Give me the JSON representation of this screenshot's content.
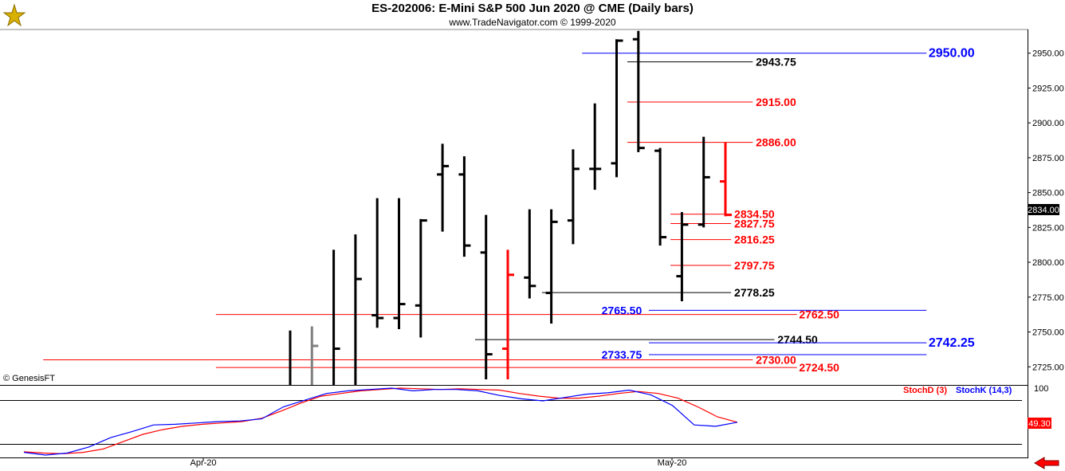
{
  "header": {
    "title": "ES-202006:  E-Mini S&P 500 Jun 2020 @ CME  (Daily bars)",
    "subtitle": "www.TradeNavigator.com © 1999-2020"
  },
  "watermark": "© GenesisFT",
  "colors": {
    "up_bar": "#000000",
    "alt_bar": "#ff0000",
    "blue": "#0000ff",
    "red": "#ff0000",
    "grey": "#808080"
  },
  "chart_data": [
    {
      "type": "bar",
      "subtype": "ohlc",
      "title": "ES-202006:  E-Mini S&P 500 Jun 2020 @ CME  (Daily bars)",
      "ylim": [
        2712,
        2967
      ],
      "yticks": [
        "2950.00",
        "2925.00",
        "2900.00",
        "2875.00",
        "2850.00",
        "2825.00",
        "2800.00",
        "2775.00",
        "2750.00",
        "2725.00"
      ],
      "xtick_labels": [
        "Apr-20",
        "May-20"
      ],
      "last_price": "2834.00",
      "bars": [
        {
          "o": null,
          "h": 2751,
          "l": 2712,
          "c": null,
          "color": "#000000"
        },
        {
          "o": null,
          "h": 2754,
          "l": 2712,
          "c": 2740,
          "color": "#808080"
        },
        {
          "o": null,
          "h": 2809,
          "l": 2712,
          "c": 2738,
          "color": "#000000"
        },
        {
          "o": null,
          "h": 2820,
          "l": 2712,
          "c": 2788,
          "color": "#000000"
        },
        {
          "o": 2762,
          "h": 2846,
          "l": 2753,
          "c": 2760,
          "color": "#000000"
        },
        {
          "o": 2760,
          "h": 2846,
          "l": 2752,
          "c": 2770,
          "color": "#000000"
        },
        {
          "o": 2769,
          "h": 2831,
          "l": 2746,
          "c": 2830,
          "color": "#000000"
        },
        {
          "o": 2863,
          "h": 2885,
          "l": 2822,
          "c": 2869,
          "color": "#000000"
        },
        {
          "o": 2863,
          "h": 2876,
          "l": 2804,
          "c": 2812,
          "color": "#000000"
        },
        {
          "o": 2807,
          "h": 2834,
          "l": 2716,
          "c": 2734,
          "color": "#000000"
        },
        {
          "o": 2738,
          "h": 2809,
          "l": 2716,
          "c": 2791,
          "color": "#ff0000"
        },
        {
          "o": 2789,
          "h": 2838,
          "l": 2774,
          "c": 2783,
          "color": "#000000"
        },
        {
          "o": 2778,
          "h": 2838,
          "l": 2756,
          "c": 2829,
          "color": "#000000"
        },
        {
          "o": 2830,
          "h": 2881,
          "l": 2813,
          "c": 2867,
          "color": "#000000"
        },
        {
          "o": 2867,
          "h": 2914,
          "l": 2852,
          "c": 2867,
          "color": "#000000"
        },
        {
          "o": 2871,
          "h": 2960,
          "l": 2861,
          "c": 2959,
          "color": "#000000"
        },
        {
          "o": 2960,
          "h": 2966,
          "l": 2879,
          "c": 2882,
          "color": "#000000"
        },
        {
          "o": 2880,
          "h": 2882,
          "l": 2812,
          "c": 2818,
          "color": "#000000"
        },
        {
          "o": 2790,
          "h": 2836,
          "l": 2772,
          "c": 2827,
          "color": "#000000"
        },
        {
          "o": 2827,
          "h": 2890,
          "l": 2825,
          "c": 2861,
          "color": "#000000"
        },
        {
          "o": 2858,
          "h": 2886,
          "l": 2833,
          "c": 2834,
          "color": "#ff0000"
        }
      ],
      "levels": [
        {
          "value": 2950.0,
          "label": "2950.00",
          "color": "#0000ff",
          "size": "big",
          "x0": 0.566,
          "x1": 0.901,
          "lx": 0.903
        },
        {
          "value": 2943.75,
          "label": "2943.75",
          "color": "#000000",
          "size": "normal",
          "x0": 0.61,
          "x1": 0.732,
          "lx": 0.735
        },
        {
          "value": 2915.0,
          "label": "2915.00",
          "color": "#ff0000",
          "size": "normal",
          "x0": 0.61,
          "x1": 0.732,
          "lx": 0.735
        },
        {
          "value": 2886.0,
          "label": "2886.00",
          "color": "#ff0000",
          "size": "normal",
          "x0": 0.61,
          "x1": 0.732,
          "lx": 0.735
        },
        {
          "value": 2834.5,
          "label": "2834.50",
          "color": "#ff0000",
          "size": "normal",
          "x0": 0.652,
          "x1": 0.711,
          "lx": 0.714
        },
        {
          "value": 2827.75,
          "label": "2827.75",
          "color": "#ff0000",
          "size": "normal",
          "x0": 0.652,
          "x1": 0.711,
          "lx": 0.714
        },
        {
          "value": 2816.25,
          "label": "2816.25",
          "color": "#ff0000",
          "size": "normal",
          "x0": 0.652,
          "x1": 0.711,
          "lx": 0.714
        },
        {
          "value": 2797.75,
          "label": "2797.75",
          "color": "#ff0000",
          "size": "normal",
          "x0": 0.652,
          "x1": 0.711,
          "lx": 0.714
        },
        {
          "value": 2778.25,
          "label": "2778.25",
          "color": "#000000",
          "size": "normal",
          "x0": 0.527,
          "x1": 0.711,
          "lx": 0.714
        },
        {
          "value": 2765.5,
          "label": "2765.50",
          "color": "#0000ff",
          "size": "normal",
          "x0": 0.631,
          "x1": 0.901,
          "lx": 0.585
        },
        {
          "value": 2762.5,
          "label": "2762.50",
          "color": "#ff0000",
          "size": "normal",
          "x0": 0.21,
          "x1": 0.775,
          "lx": 0.777
        },
        {
          "value": 2744.5,
          "label": "2744.50",
          "color": "#000000",
          "size": "normal",
          "x0": 0.462,
          "x1": 0.753,
          "lx": 0.756
        },
        {
          "value": 2742.25,
          "label": "2742.25",
          "color": "#0000ff",
          "size": "big",
          "x0": 0.631,
          "x1": 0.901,
          "lx": 0.903
        },
        {
          "value": 2733.75,
          "label": "2733.75",
          "color": "#0000ff",
          "size": "normal",
          "x0": 0.631,
          "x1": 0.901,
          "lx": 0.585
        },
        {
          "value": 2730.0,
          "label": "2730.00",
          "color": "#ff0000",
          "size": "normal",
          "x0": 0.042,
          "x1": 0.732,
          "lx": 0.735
        },
        {
          "value": 2724.5,
          "label": "2724.50",
          "color": "#ff0000",
          "size": "normal",
          "x0": 0.21,
          "x1": 0.775,
          "lx": 0.777
        }
      ]
    },
    {
      "type": "line",
      "title": "",
      "ylim": [
        0,
        100
      ],
      "ytick_label": "100",
      "last_value": "49.30",
      "legend": [
        {
          "name": "StochD (3)",
          "color": "#ff0000"
        },
        {
          "name": "StochK (14,3)",
          "color": "#0000ff"
        }
      ],
      "series": [
        {
          "name": "StochD (3)",
          "color": "#ff0000",
          "values": [
            5,
            3,
            2,
            4,
            9,
            20,
            31,
            38,
            43,
            46,
            48,
            50,
            55,
            66,
            78,
            88,
            92,
            96,
            98,
            100,
            99,
            98,
            99,
            98,
            97,
            92,
            88,
            85,
            85,
            88,
            92,
            95,
            92,
            85,
            72,
            57,
            49
          ]
        },
        {
          "name": "StochK (14,3)",
          "color": "#0000ff",
          "values": [
            4,
            0,
            3,
            12,
            26,
            35,
            45,
            46,
            48,
            50,
            51,
            54,
            72,
            82,
            92,
            96,
            98,
            100,
            96,
            98,
            98,
            96,
            89,
            84,
            81,
            86,
            91,
            93,
            97,
            90,
            74,
            45,
            43,
            49
          ]
        }
      ]
    }
  ]
}
